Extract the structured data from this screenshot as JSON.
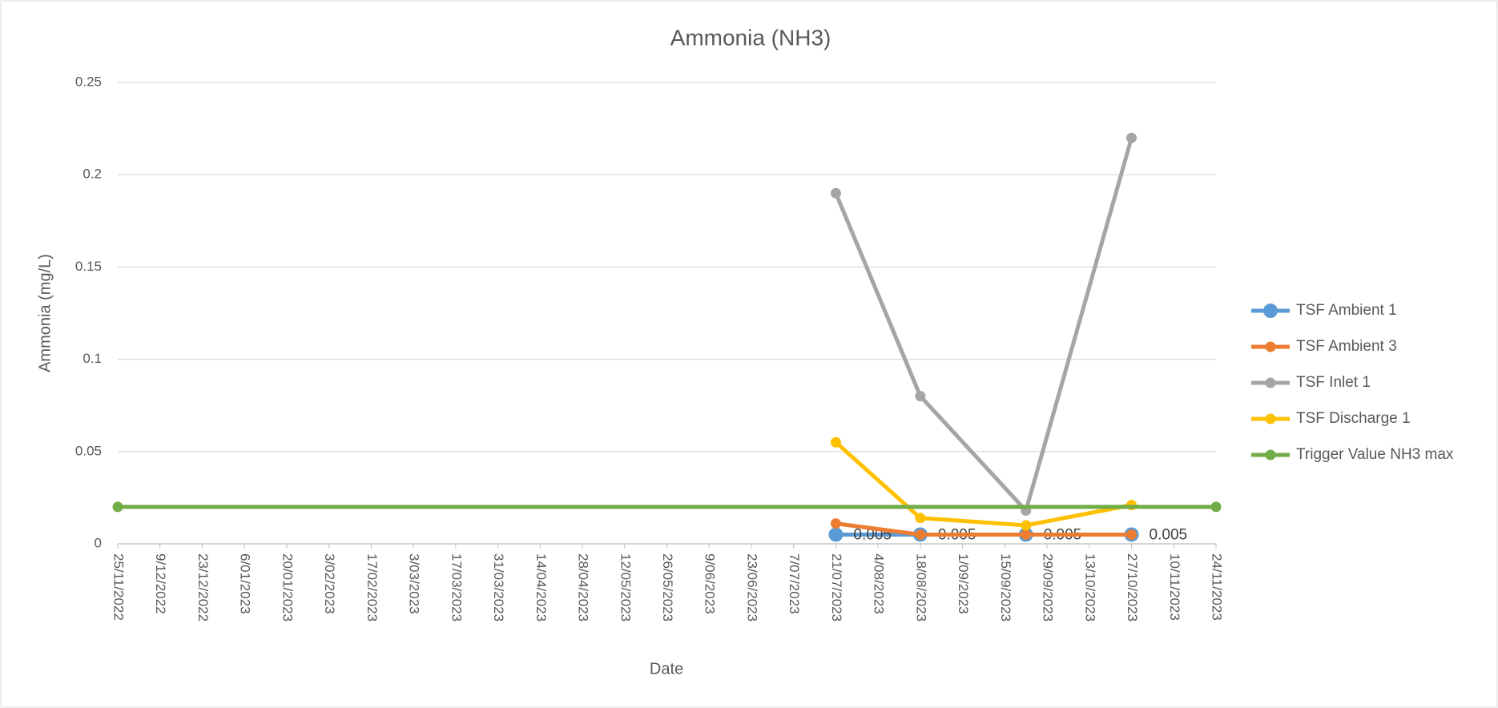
{
  "chart_data": {
    "type": "line",
    "title": "Ammonia (NH3)",
    "x_label": "Date",
    "y_label": "Ammonia (mg/L)",
    "xlim": [
      "25/11/2022",
      "24/11/2023"
    ],
    "xticks": [
      "25/11/2022",
      "9/12/2022",
      "23/12/2022",
      "6/01/2023",
      "20/01/2023",
      "3/02/2023",
      "17/02/2023",
      "3/03/2023",
      "17/03/2023",
      "31/03/2023",
      "14/04/2023",
      "28/04/2023",
      "12/05/2023",
      "26/05/2023",
      "9/06/2023",
      "23/06/2023",
      "7/07/2023",
      "21/07/2023",
      "4/08/2023",
      "18/08/2023",
      "1/09/2023",
      "15/09/2023",
      "29/09/2023",
      "13/10/2023",
      "27/10/2023",
      "10/11/2023",
      "24/11/2023"
    ],
    "ylim": [
      0,
      0.25
    ],
    "yticks": [
      0,
      0.05,
      0.1,
      0.15,
      0.2,
      0.25
    ],
    "grid": true,
    "legend": "right",
    "series": [
      {
        "name": "TSF Ambient 1",
        "color": "#5b9bd5",
        "data_labels": true,
        "x": [
          "21/07/2023",
          "18/08/2023",
          "22/09/2023",
          "27/10/2023"
        ],
        "values": [
          0.005,
          0.005,
          0.005,
          0.005
        ]
      },
      {
        "name": "TSF Ambient 3",
        "color": "#ed7d31",
        "x": [
          "21/07/2023",
          "18/08/2023",
          "22/09/2023",
          "27/10/2023"
        ],
        "values": [
          0.011,
          0.005,
          0.005,
          0.005
        ]
      },
      {
        "name": "TSF Inlet 1",
        "color": "#a5a5a5",
        "x": [
          "21/07/2023",
          "18/08/2023",
          "22/09/2023",
          "27/10/2023"
        ],
        "values": [
          0.19,
          0.08,
          0.018,
          0.22
        ]
      },
      {
        "name": "TSF Discharge 1",
        "color": "#ffc000",
        "x": [
          "21/07/2023",
          "18/08/2023",
          "22/09/2023",
          "27/10/2023"
        ],
        "values": [
          0.055,
          0.014,
          0.01,
          0.021
        ]
      },
      {
        "name": "Trigger Value NH3 max",
        "color": "#70ad47",
        "x": [
          "25/11/2022",
          "24/11/2023"
        ],
        "values": [
          0.02,
          0.02
        ]
      }
    ]
  }
}
